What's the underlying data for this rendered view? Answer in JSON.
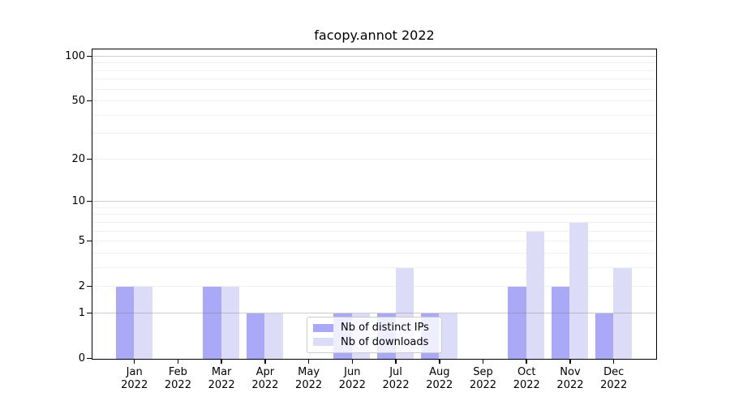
{
  "title": "facopy.annot 2022",
  "chart_data": {
    "type": "bar",
    "title": "facopy.annot 2022",
    "categories": [
      "Jan 2022",
      "Feb 2022",
      "Mar 2022",
      "Apr 2022",
      "May 2022",
      "Jun 2022",
      "Jul 2022",
      "Aug 2022",
      "Sep 2022",
      "Oct 2022",
      "Nov 2022",
      "Dec 2022"
    ],
    "series": [
      {
        "name": "Nb of distinct IPs",
        "color": "#a9a9f7",
        "values": [
          2,
          0,
          2,
          1,
          0,
          1,
          1,
          1,
          0,
          2,
          2,
          1
        ]
      },
      {
        "name": "Nb of downloads",
        "color": "#dcdcf9",
        "values": [
          2,
          0,
          2,
          1,
          0,
          1,
          3,
          1,
          0,
          6,
          7,
          3
        ]
      }
    ],
    "yscale": "log(1+y)",
    "ylim": [
      0,
      115
    ],
    "xlabel": "",
    "ylabel": "",
    "y_tick_labels": [
      0,
      1,
      2,
      5,
      10,
      20,
      50,
      100
    ],
    "y_major_gridlines": [
      1,
      10,
      100
    ],
    "y_minor_gridlines": [
      2,
      3,
      4,
      5,
      6,
      7,
      8,
      9,
      20,
      30,
      40,
      50,
      60,
      70,
      80,
      90
    ],
    "grid": true,
    "legend_position": "inside lower-center"
  },
  "colors": {
    "bar_ips": "#a9a9f7",
    "bar_downloads": "#dcdcf9",
    "grid_major": "#cccccc",
    "grid_minor": "#efefef",
    "spine": "#000000",
    "text": "#000000",
    "legend_border": "#cccccc"
  }
}
